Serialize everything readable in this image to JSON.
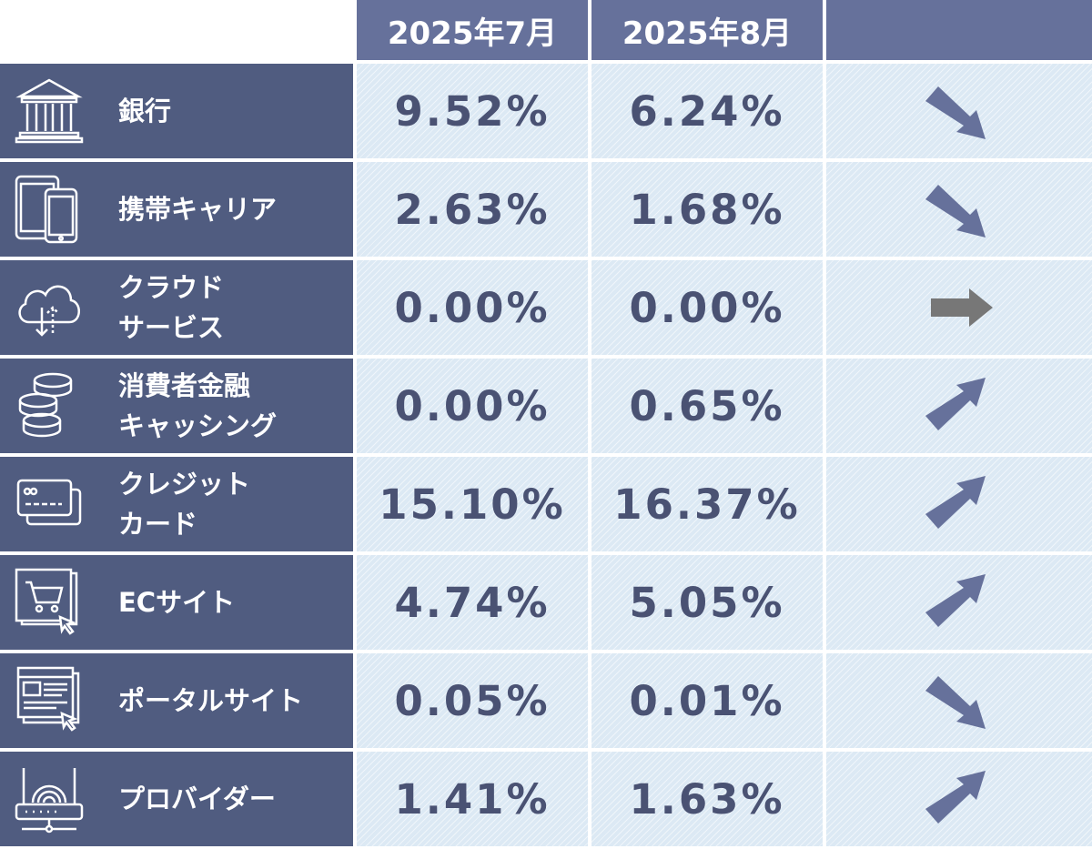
{
  "header": {
    "col1": "2025年7月",
    "col2": "2025年8月",
    "col3": ""
  },
  "rows": [
    {
      "icon": "bank-icon",
      "label_lines": [
        "銀行"
      ],
      "jul": "9.52%",
      "aug": "6.24%",
      "trend": "down",
      "trend_color": "#66719b"
    },
    {
      "icon": "mobile-devices-icon",
      "label_lines": [
        "携帯キャリア"
      ],
      "jul": "2.63%",
      "aug": "1.68%",
      "trend": "down",
      "trend_color": "#66719b"
    },
    {
      "icon": "cloud-sync-icon",
      "label_lines": [
        "クラウド",
        "サービス"
      ],
      "jul": "0.00%",
      "aug": "0.00%",
      "trend": "flat",
      "trend_color": "#777777"
    },
    {
      "icon": "coin-stack-icon",
      "label_lines": [
        "消費者金融",
        "キャッシング"
      ],
      "jul": "0.00%",
      "aug": "0.65%",
      "trend": "up",
      "trend_color": "#66719b"
    },
    {
      "icon": "credit-card-icon",
      "label_lines": [
        "クレジット",
        "カード"
      ],
      "jul": "15.10%",
      "aug": "16.37%",
      "trend": "up",
      "trend_color": "#66719b"
    },
    {
      "icon": "ec-cart-icon",
      "label_lines": [
        "ECサイト"
      ],
      "jul": "4.74%",
      "aug": "5.05%",
      "trend": "up",
      "trend_color": "#66719b"
    },
    {
      "icon": "portal-site-icon",
      "label_lines": [
        "ポータルサイト"
      ],
      "jul": "0.05%",
      "aug": "0.01%",
      "trend": "down",
      "trend_color": "#66719b"
    },
    {
      "icon": "router-icon",
      "label_lines": [
        "プロバイダー"
      ],
      "jul": "1.41%",
      "aug": "1.63%",
      "trend": "up",
      "trend_color": "#66719b"
    }
  ]
}
